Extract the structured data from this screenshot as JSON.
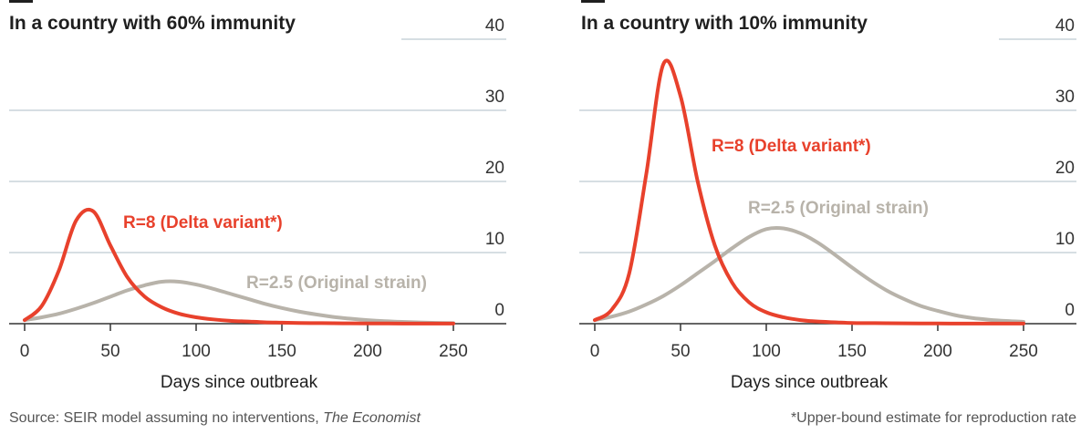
{
  "chart_data": [
    {
      "type": "line",
      "title": "In a country with 60% immunity",
      "xlabel": "Days since outbreak",
      "x": [
        0,
        10,
        20,
        30,
        40,
        50,
        60,
        70,
        80,
        90,
        100,
        110,
        120,
        130,
        140,
        150,
        160,
        170,
        180,
        190,
        200,
        210,
        220,
        230,
        240,
        250
      ],
      "series": [
        {
          "name": "R=8 (Delta variant*)",
          "color": "#e8412c",
          "values": [
            0.5,
            2.5,
            7.5,
            14.5,
            15.8,
            11,
            6.5,
            3.8,
            2.3,
            1.4,
            0.9,
            0.6,
            0.4,
            0.3,
            0.2,
            0.15,
            0.1,
            0.08,
            0.06,
            0.05,
            0.04,
            0.03,
            0.02,
            0.02,
            0.01,
            0.01
          ]
        },
        {
          "name": "R=2.5 (Original strain)",
          "color": "#b8b3aa",
          "values": [
            0.5,
            0.9,
            1.4,
            2.1,
            2.9,
            3.8,
            4.7,
            5.4,
            5.9,
            5.9,
            5.5,
            4.9,
            4.2,
            3.5,
            2.8,
            2.2,
            1.7,
            1.3,
            0.95,
            0.7,
            0.5,
            0.35,
            0.25,
            0.18,
            0.12,
            0.08
          ]
        }
      ],
      "xlim": [
        0,
        250
      ],
      "xticks": [
        0,
        50,
        100,
        150,
        200,
        250
      ],
      "ylim": [
        0,
        40
      ],
      "yticks": [
        0,
        10,
        20,
        30,
        40
      ],
      "grid": true
    },
    {
      "type": "line",
      "title": "In a country with 10% immunity",
      "xlabel": "Days since outbreak",
      "x": [
        0,
        10,
        20,
        30,
        40,
        50,
        60,
        70,
        80,
        90,
        100,
        110,
        120,
        130,
        140,
        150,
        160,
        170,
        180,
        190,
        200,
        210,
        220,
        230,
        240,
        250
      ],
      "series": [
        {
          "name": "R=8 (Delta variant*)",
          "color": "#e8412c",
          "values": [
            0.5,
            2,
            7,
            21,
            36.5,
            32,
            20,
            11,
            5.8,
            3,
            1.6,
            0.9,
            0.5,
            0.3,
            0.2,
            0.1,
            0.08,
            0.06,
            0.05,
            0.04,
            0.03,
            0.02,
            0.02,
            0.01,
            0.01,
            0.01
          ]
        },
        {
          "name": "R=2.5 (Original strain)",
          "color": "#b8b3aa",
          "values": [
            0.5,
            1,
            1.7,
            2.7,
            3.9,
            5.4,
            7.1,
            8.8,
            10.6,
            12.2,
            13.3,
            13.4,
            12.7,
            11.4,
            9.7,
            7.9,
            6.2,
            4.7,
            3.5,
            2.5,
            1.8,
            1.2,
            0.8,
            0.55,
            0.38,
            0.26
          ]
        }
      ],
      "xlim": [
        0,
        250
      ],
      "xticks": [
        0,
        50,
        100,
        150,
        200,
        250
      ],
      "ylim": [
        0,
        40
      ],
      "yticks": [
        0,
        10,
        20,
        30,
        40
      ],
      "grid": true
    }
  ],
  "source": "Source: SEIR model assuming no interventions, ",
  "source_publication": "The Economist",
  "footnote": "*Upper-bound estimate for reproduction rate"
}
